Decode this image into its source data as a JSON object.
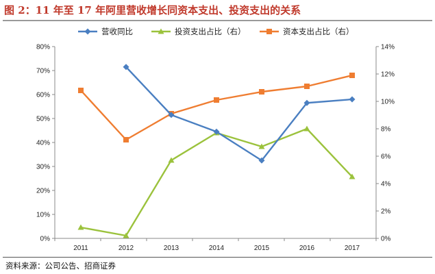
{
  "title": "图 2：11 年至 17 年阿里营收增长同资本支出、投资支出的关系",
  "source": "资料来源：公司公告、招商证券",
  "colors": {
    "title": "#c0392b",
    "revenue_growth": "#4a7fc1",
    "investment_capex": "#9bc23c",
    "capital_capex": "#ef7d31"
  },
  "chart_data": {
    "type": "line",
    "title": "",
    "x": [
      "2011",
      "2012",
      "2013",
      "2014",
      "2015",
      "2016",
      "2017"
    ],
    "y_left": {
      "ylim": [
        0,
        80
      ],
      "ticks": [
        "0%",
        "10%",
        "20%",
        "30%",
        "40%",
        "50%",
        "60%",
        "70%",
        "80%"
      ]
    },
    "y_right": {
      "ylim": [
        0,
        14
      ],
      "ticks": [
        "0%",
        "2%",
        "4%",
        "6%",
        "8%",
        "10%",
        "12%",
        "14%"
      ]
    },
    "grid": false,
    "legend_position": "top",
    "series": [
      {
        "name": "营收同比",
        "axis": "left",
        "marker": "diamond",
        "color": "#4a7fc1",
        "values": [
          null,
          71.5,
          51.5,
          44.5,
          32.5,
          56.5,
          58
        ]
      },
      {
        "name": "投资支出占比（右）",
        "axis": "right",
        "marker": "triangle",
        "color": "#9bc23c",
        "values": [
          0.8,
          0.2,
          5.7,
          7.7,
          6.7,
          8.0,
          4.5
        ]
      },
      {
        "name": "资本支出占比（右）",
        "axis": "right",
        "marker": "square",
        "color": "#ef7d31",
        "values": [
          10.8,
          7.2,
          9.1,
          10.1,
          10.7,
          11.1,
          11.9
        ]
      }
    ]
  }
}
